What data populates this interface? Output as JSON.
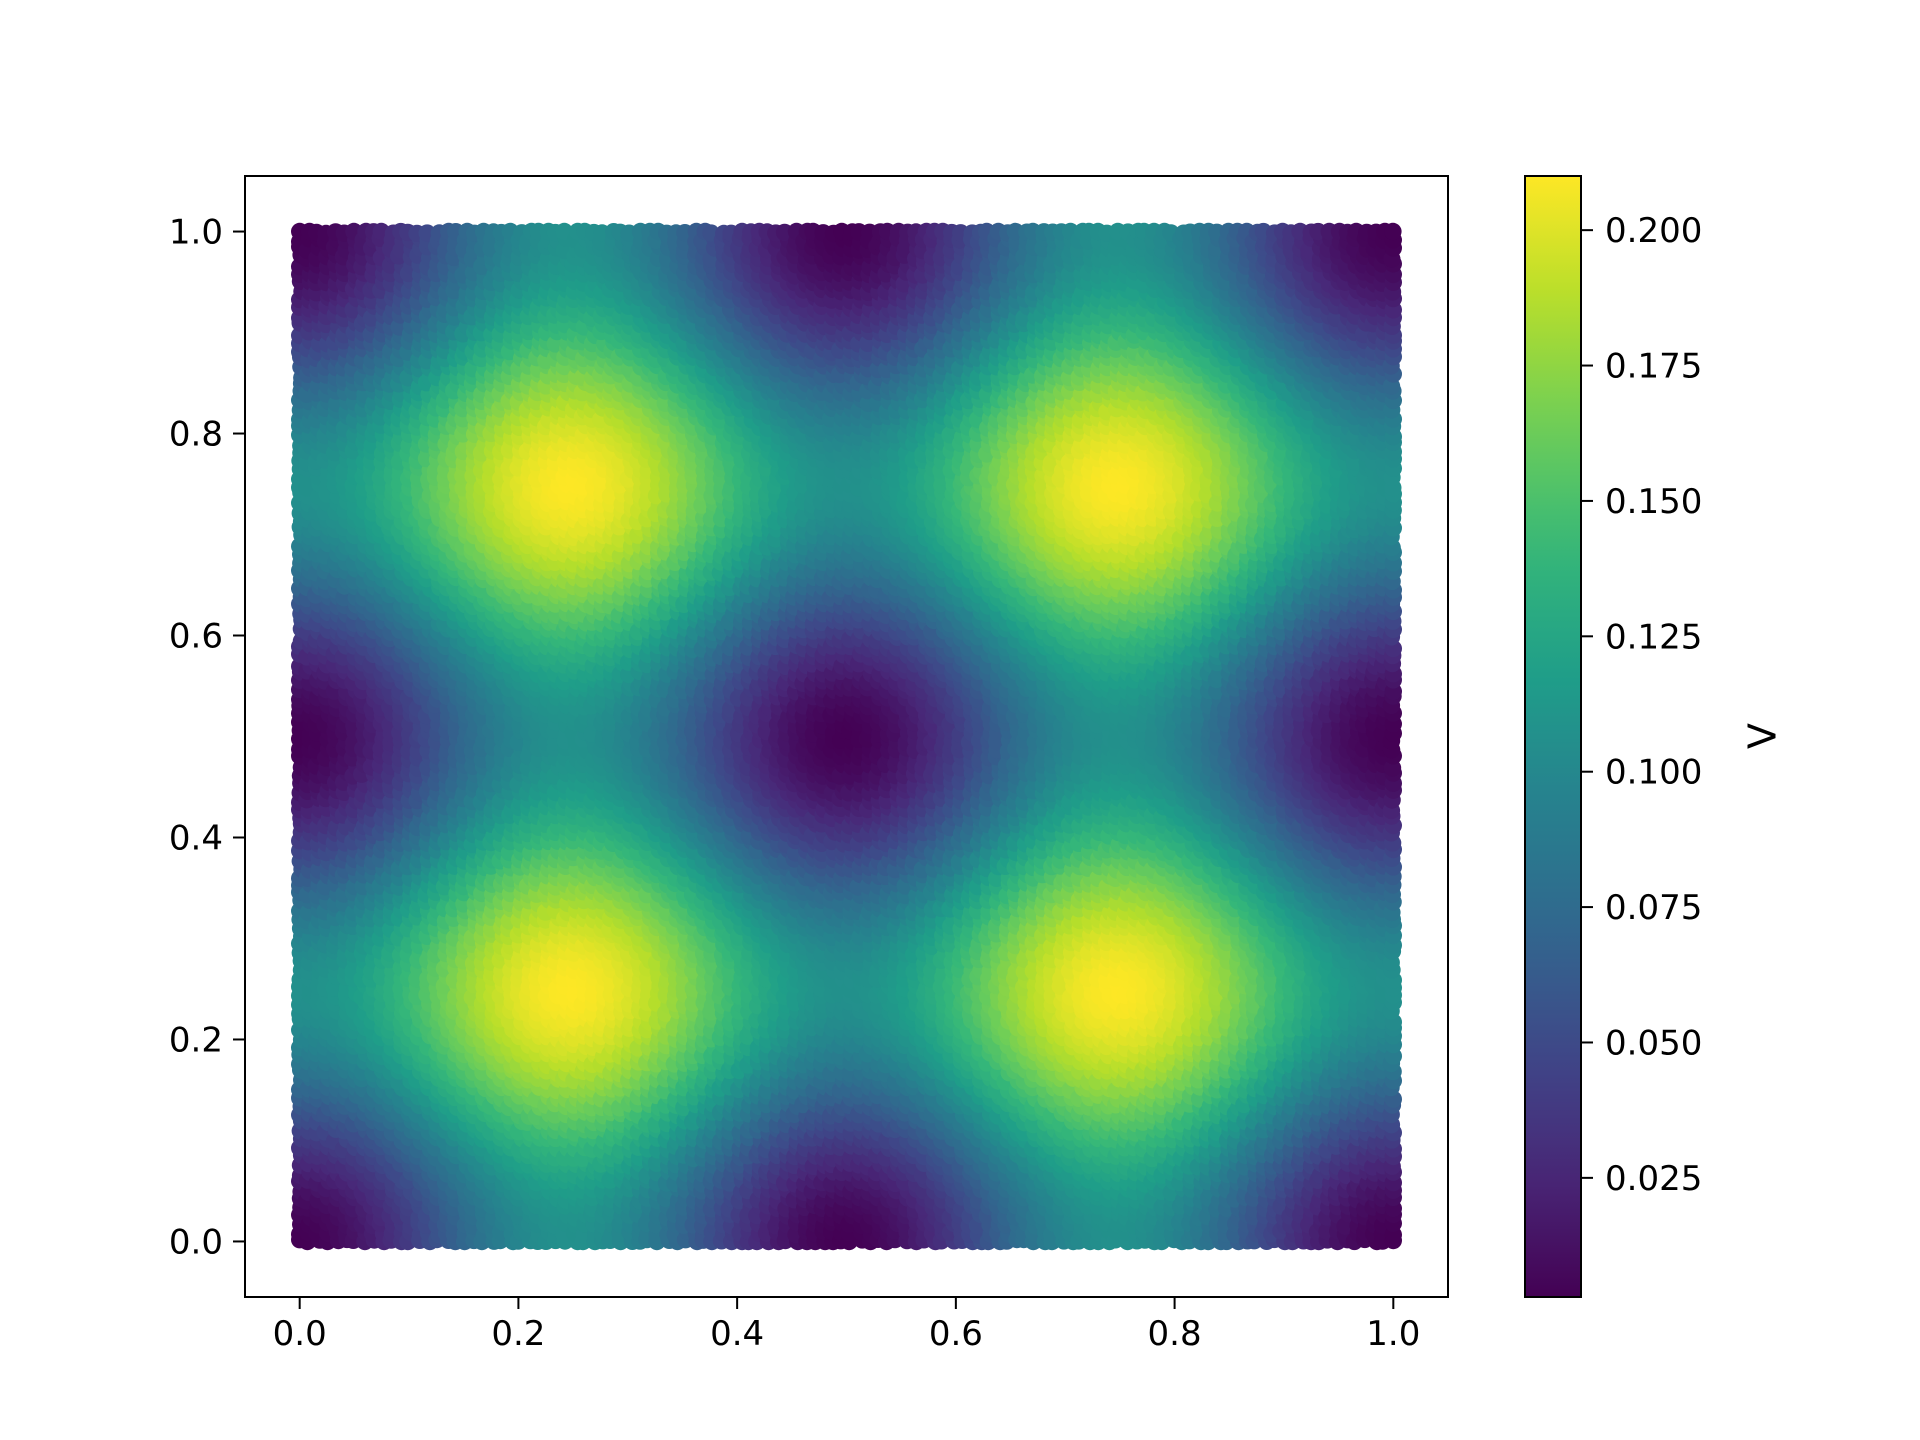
{
  "chart_data": {
    "type": "scatter",
    "title": "",
    "xlabel": "",
    "ylabel": "",
    "xlim": [
      -0.05,
      1.05
    ],
    "ylim": [
      -0.055,
      1.055
    ],
    "xticks": [
      {
        "value": 0.0,
        "label": "0.0"
      },
      {
        "value": 0.2,
        "label": "0.2"
      },
      {
        "value": 0.4,
        "label": "0.4"
      },
      {
        "value": 0.6,
        "label": "0.6"
      },
      {
        "value": 0.8,
        "label": "0.8"
      },
      {
        "value": 1.0,
        "label": "1.0"
      }
    ],
    "yticks": [
      {
        "value": 0.0,
        "label": "0.0"
      },
      {
        "value": 0.2,
        "label": "0.2"
      },
      {
        "value": 0.4,
        "label": "0.4"
      },
      {
        "value": 0.6,
        "label": "0.6"
      },
      {
        "value": 0.8,
        "label": "0.8"
      },
      {
        "value": 1.0,
        "label": "1.0"
      }
    ],
    "grid": false,
    "colormap": "viridis",
    "color_field": {
      "description_formula": "c = 0.105 + 0.105*cos(4*pi*x)*cos(4*pi*y)",
      "min": 0.003,
      "max": 0.21,
      "maxima": [
        [
          0.0,
          0.0
        ],
        [
          0.25,
          0.25
        ],
        [
          0.75,
          0.25
        ],
        [
          0.5,
          0.5
        ],
        [
          0.0,
          0.5
        ],
        [
          1.0,
          0.5
        ],
        [
          0.25,
          0.75
        ],
        [
          0.75,
          0.75
        ],
        [
          0.5,
          1.0
        ],
        [
          0.0,
          1.0
        ],
        [
          1.0,
          1.0
        ],
        [
          0.5,
          0.0
        ],
        [
          1.0,
          0.0
        ]
      ],
      "minima_positions": [
        [
          0.5,
          0.0
        ],
        [
          0.25,
          0.25
        ],
        [
          0.75,
          0.25
        ],
        [
          0.0,
          0.5
        ],
        [
          0.5,
          0.5
        ],
        [
          1.0,
          0.5
        ],
        [
          0.25,
          0.75
        ],
        [
          0.75,
          0.75
        ],
        [
          0.0,
          1.0
        ],
        [
          0.5,
          1.0
        ],
        [
          1.0,
          1.0
        ]
      ]
    },
    "point_domain": {
      "x": [
        0.0,
        1.0
      ],
      "y": [
        0.0,
        1.0
      ]
    },
    "colorbar": {
      "label": "V",
      "range": [
        0.003,
        0.21
      ],
      "ticks": [
        {
          "value": 0.025,
          "label": "0.025"
        },
        {
          "value": 0.05,
          "label": "0.050"
        },
        {
          "value": 0.075,
          "label": "0.075"
        },
        {
          "value": 0.1,
          "label": "0.100"
        },
        {
          "value": 0.125,
          "label": "0.125"
        },
        {
          "value": 0.15,
          "label": "0.150"
        },
        {
          "value": 0.175,
          "label": "0.175"
        },
        {
          "value": 0.2,
          "label": "0.200"
        }
      ]
    },
    "colors": {
      "viridis_stops": [
        "#440154",
        "#482878",
        "#3e4989",
        "#31688e",
        "#26828e",
        "#1f9e89",
        "#35b779",
        "#6ece58",
        "#b5de2b",
        "#fde725"
      ]
    }
  }
}
